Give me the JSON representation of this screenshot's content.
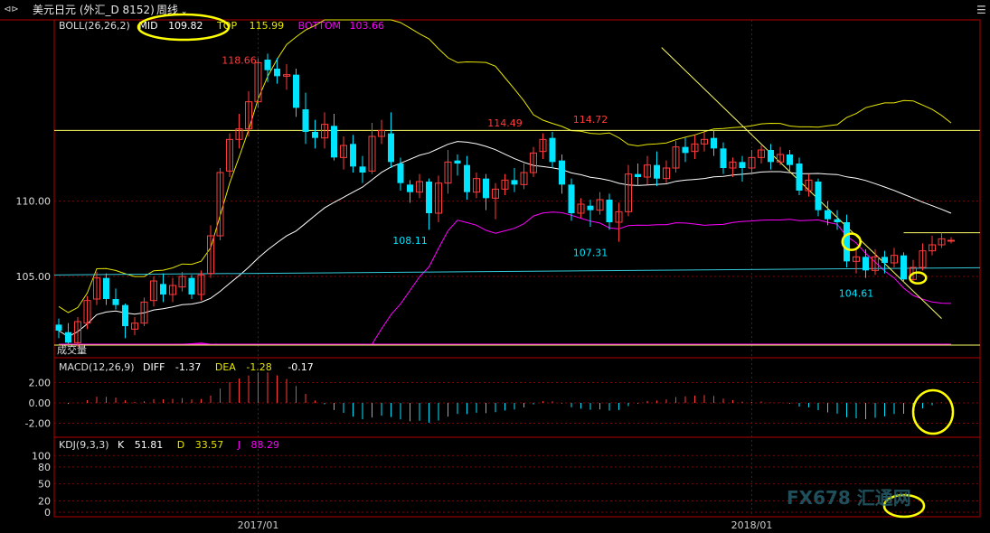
{
  "window": {
    "title": "美元日元 (外汇_D 8152)",
    "period": "周线",
    "period_icon": "chevron-down-icon",
    "nav_icon": "back-forward-icon",
    "menu_icon": "menu-icon"
  },
  "colors": {
    "up": "#ff3b3b",
    "down": "#00e5ff",
    "mid": "#ffffff",
    "top": "#e6e600",
    "bottom": "#ff00ff",
    "frame": "#b30000",
    "grid": "#8b0000",
    "annotation": "#ffff00",
    "hline": "#ffff66",
    "cyanline": "#33ccdd"
  },
  "boll": {
    "label": "BOLL(26,26,2)",
    "mid_label": "MID",
    "mid_value": "109.82",
    "top_label": "TOP",
    "top_value": "115.99",
    "bottom_label": "BOTTOM",
    "bottom_value": "103.66"
  },
  "macd": {
    "label": "MACD(12,26,9)",
    "diff_label": "DIFF",
    "diff_value": "-1.37",
    "dea_label": "DEA",
    "dea_value": "-1.28",
    "macd_value": "-0.17",
    "ticks": [
      "2.00",
      "0.00",
      "-2.00"
    ]
  },
  "kdj": {
    "label": "KDJ(9,3,3)",
    "k_label": "K",
    "k_value": "51.81",
    "d_label": "D",
    "d_value": "33.57",
    "j_label": "J",
    "j_value": "88.29",
    "ticks": [
      "100",
      "80",
      "50",
      "20",
      "0"
    ]
  },
  "misc": {
    "volume_label": "成交量",
    "watermark": "FX678 汇通网"
  },
  "chart_data": {
    "type": "candlestick",
    "price_axis": {
      "ylim": [
        100.5,
        121.2
      ],
      "ticks": [
        110.0,
        105.0
      ]
    },
    "x_labels": [
      {
        "index": 21,
        "text": "2017/01"
      },
      {
        "index": 73,
        "text": "2018/01"
      }
    ],
    "annotations": [
      {
        "index": 19,
        "price": 118.66,
        "text": "118.66"
      },
      {
        "index": 47,
        "price": 114.49,
        "text": "114.49"
      },
      {
        "index": 37,
        "price": 108.11,
        "text": "108.11"
      },
      {
        "index": 56,
        "price": 114.72,
        "text": "114.72"
      },
      {
        "index": 56,
        "price": 107.31,
        "text": "107.31"
      },
      {
        "index": 84,
        "price": 104.61,
        "text": "104.61"
      }
    ],
    "hlines": [
      114.7,
      107.9,
      105.1
    ],
    "trendline": [
      {
        "index": 63.5,
        "price": 120.2
      },
      {
        "index": 93,
        "price": 102.2
      }
    ],
    "ohlc": [
      [
        101.8,
        101.4,
        102.2,
        100.9
      ],
      [
        101.3,
        100.6,
        101.9,
        100.3
      ],
      [
        100.6,
        102.0,
        102.3,
        100.3
      ],
      [
        101.9,
        103.4,
        103.7,
        101.5
      ],
      [
        103.5,
        104.9,
        105.3,
        103.1
      ],
      [
        104.9,
        103.5,
        105.2,
        103.1
      ],
      [
        103.5,
        103.1,
        104.2,
        102.8
      ],
      [
        103.1,
        101.7,
        103.2,
        100.9
      ],
      [
        101.5,
        101.9,
        102.3,
        101.1
      ],
      [
        101.9,
        103.3,
        103.6,
        101.7
      ],
      [
        103.4,
        104.7,
        105.0,
        103.0
      ],
      [
        104.5,
        103.8,
        105.2,
        103.3
      ],
      [
        103.8,
        104.4,
        104.9,
        103.3
      ],
      [
        104.3,
        105.0,
        105.3,
        104.0
      ],
      [
        104.9,
        103.8,
        105.1,
        103.5
      ],
      [
        103.8,
        105.1,
        105.4,
        103.4
      ],
      [
        105.2,
        107.7,
        108.4,
        104.9
      ],
      [
        107.7,
        111.9,
        112.2,
        107.4
      ],
      [
        112.0,
        114.1,
        114.5,
        111.6
      ],
      [
        114.1,
        114.8,
        115.8,
        113.5
      ],
      [
        114.8,
        116.6,
        117.3,
        114.3
      ],
      [
        116.6,
        119.2,
        119.5,
        116.2
      ],
      [
        119.4,
        118.7,
        119.8,
        117.9
      ],
      [
        118.8,
        118.3,
        119.5,
        117.8
      ],
      [
        118.3,
        118.4,
        119.1,
        117.4
      ],
      [
        118.4,
        116.2,
        118.8,
        115.6
      ],
      [
        116.1,
        114.6,
        117.2,
        113.8
      ],
      [
        114.6,
        114.2,
        115.4,
        113.5
      ],
      [
        114.2,
        115.1,
        115.9,
        113.5
      ],
      [
        115.0,
        112.9,
        115.8,
        112.7
      ],
      [
        112.9,
        113.7,
        114.3,
        112.1
      ],
      [
        113.8,
        112.3,
        114.4,
        111.9
      ],
      [
        112.3,
        111.9,
        113.0,
        111.2
      ],
      [
        112.0,
        114.3,
        115.2,
        111.8
      ],
      [
        114.3,
        114.7,
        115.4,
        113.8
      ],
      [
        114.5,
        112.6,
        115.9,
        112.2
      ],
      [
        112.5,
        111.2,
        112.9,
        110.7
      ],
      [
        111.1,
        110.6,
        111.4,
        109.9
      ],
      [
        110.6,
        111.3,
        111.8,
        110.2
      ],
      [
        111.3,
        109.2,
        111.5,
        108.1
      ],
      [
        109.2,
        111.2,
        111.7,
        108.6
      ],
      [
        111.2,
        112.6,
        113.4,
        110.5
      ],
      [
        112.7,
        112.5,
        113.1,
        111.7
      ],
      [
        112.4,
        110.6,
        113.0,
        110.1
      ],
      [
        110.6,
        111.5,
        111.9,
        110.2
      ],
      [
        111.5,
        110.2,
        111.8,
        109.4
      ],
      [
        110.2,
        110.8,
        111.2,
        108.8
      ],
      [
        110.8,
        111.4,
        111.8,
        110.4
      ],
      [
        111.4,
        111.1,
        112.2,
        110.6
      ],
      [
        111.1,
        111.9,
        112.5,
        110.8
      ],
      [
        111.9,
        113.2,
        113.6,
        111.6
      ],
      [
        113.3,
        114.1,
        114.5,
        112.8
      ],
      [
        114.2,
        112.6,
        114.6,
        112.2
      ],
      [
        112.7,
        111.1,
        113.1,
        110.5
      ],
      [
        111.1,
        109.2,
        111.5,
        108.7
      ],
      [
        109.2,
        109.8,
        110.2,
        108.9
      ],
      [
        109.7,
        109.4,
        110.1,
        108.3
      ],
      [
        109.4,
        110.1,
        110.6,
        109.1
      ],
      [
        110.1,
        108.6,
        110.5,
        108.1
      ],
      [
        108.6,
        109.3,
        109.9,
        107.3
      ],
      [
        109.3,
        111.8,
        112.4,
        109.0
      ],
      [
        111.8,
        111.6,
        112.5,
        111.0
      ],
      [
        111.6,
        112.4,
        113.0,
        111.1
      ],
      [
        112.4,
        111.5,
        113.3,
        111.0
      ],
      [
        111.5,
        112.2,
        112.7,
        111.2
      ],
      [
        112.2,
        113.6,
        114.0,
        111.9
      ],
      [
        113.6,
        113.2,
        114.2,
        112.6
      ],
      [
        113.3,
        113.8,
        114.4,
        112.8
      ],
      [
        113.8,
        114.1,
        114.6,
        113.3
      ],
      [
        114.2,
        113.5,
        114.7,
        113.0
      ],
      [
        113.5,
        112.2,
        113.9,
        111.8
      ],
      [
        112.2,
        112.6,
        112.9,
        111.6
      ],
      [
        112.6,
        112.2,
        113.0,
        111.3
      ],
      [
        112.2,
        112.9,
        113.4,
        111.9
      ],
      [
        112.9,
        113.4,
        113.7,
        112.5
      ],
      [
        113.4,
        112.6,
        113.8,
        112.1
      ],
      [
        112.6,
        113.1,
        113.6,
        112.4
      ],
      [
        113.1,
        112.4,
        113.4,
        111.9
      ],
      [
        112.5,
        110.7,
        112.9,
        110.4
      ],
      [
        110.7,
        111.4,
        111.8,
        110.3
      ],
      [
        111.3,
        109.4,
        111.5,
        109.0
      ],
      [
        109.4,
        108.8,
        110.0,
        108.4
      ],
      [
        108.8,
        108.6,
        109.4,
        108.1
      ],
      [
        108.6,
        106.0,
        109.1,
        105.6
      ],
      [
        106.0,
        106.3,
        106.9,
        105.2
      ],
      [
        106.3,
        105.4,
        106.8,
        104.9
      ],
      [
        105.4,
        106.3,
        106.8,
        105.1
      ],
      [
        106.3,
        105.9,
        106.7,
        105.2
      ],
      [
        105.9,
        106.4,
        106.9,
        105.6
      ],
      [
        106.4,
        104.8,
        106.6,
        104.6
      ],
      [
        104.8,
        105.6,
        106.1,
        104.7
      ],
      [
        105.6,
        106.7,
        107.2,
        105.4
      ],
      [
        106.7,
        107.1,
        107.7,
        106.4
      ],
      [
        107.1,
        107.5,
        107.9,
        106.9
      ],
      [
        107.4,
        107.4,
        107.6,
        107.2
      ]
    ]
  }
}
